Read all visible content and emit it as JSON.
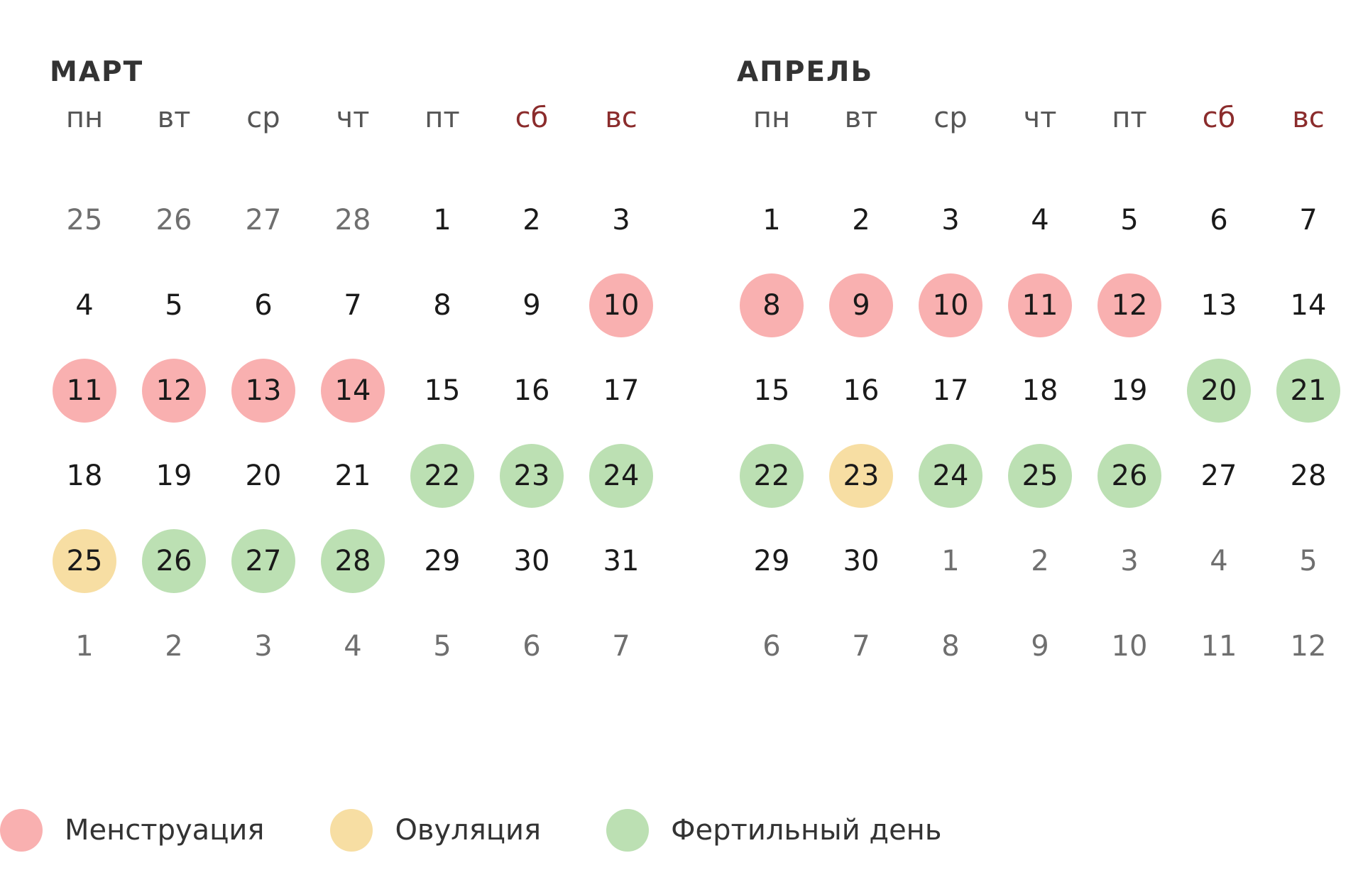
{
  "months": [
    {
      "title": "МАРТ",
      "weekdays": [
        "пн",
        "вт",
        "ср",
        "чт",
        "пт",
        "сб",
        "вс"
      ],
      "days": [
        {
          "label": "25",
          "current": false,
          "mark": ""
        },
        {
          "label": "26",
          "current": false,
          "mark": ""
        },
        {
          "label": "27",
          "current": false,
          "mark": ""
        },
        {
          "label": "28",
          "current": false,
          "mark": ""
        },
        {
          "label": "1",
          "current": true,
          "mark": ""
        },
        {
          "label": "2",
          "current": true,
          "mark": ""
        },
        {
          "label": "3",
          "current": true,
          "mark": ""
        },
        {
          "label": "4",
          "current": true,
          "mark": ""
        },
        {
          "label": "5",
          "current": true,
          "mark": ""
        },
        {
          "label": "6",
          "current": true,
          "mark": ""
        },
        {
          "label": "7",
          "current": true,
          "mark": ""
        },
        {
          "label": "8",
          "current": true,
          "mark": ""
        },
        {
          "label": "9",
          "current": true,
          "mark": ""
        },
        {
          "label": "10",
          "current": true,
          "mark": "menstruation"
        },
        {
          "label": "11",
          "current": true,
          "mark": "menstruation"
        },
        {
          "label": "12",
          "current": true,
          "mark": "menstruation"
        },
        {
          "label": "13",
          "current": true,
          "mark": "menstruation"
        },
        {
          "label": "14",
          "current": true,
          "mark": "menstruation"
        },
        {
          "label": "15",
          "current": true,
          "mark": ""
        },
        {
          "label": "16",
          "current": true,
          "mark": ""
        },
        {
          "label": "17",
          "current": true,
          "mark": ""
        },
        {
          "label": "18",
          "current": true,
          "mark": ""
        },
        {
          "label": "19",
          "current": true,
          "mark": ""
        },
        {
          "label": "20",
          "current": true,
          "mark": ""
        },
        {
          "label": "21",
          "current": true,
          "mark": ""
        },
        {
          "label": "22",
          "current": true,
          "mark": "fertile"
        },
        {
          "label": "23",
          "current": true,
          "mark": "fertile"
        },
        {
          "label": "24",
          "current": true,
          "mark": "fertile"
        },
        {
          "label": "25",
          "current": true,
          "mark": "ovulation"
        },
        {
          "label": "26",
          "current": true,
          "mark": "fertile"
        },
        {
          "label": "27",
          "current": true,
          "mark": "fertile"
        },
        {
          "label": "28",
          "current": true,
          "mark": "fertile"
        },
        {
          "label": "29",
          "current": true,
          "mark": ""
        },
        {
          "label": "30",
          "current": true,
          "mark": ""
        },
        {
          "label": "31",
          "current": true,
          "mark": ""
        },
        {
          "label": "1",
          "current": false,
          "mark": ""
        },
        {
          "label": "2",
          "current": false,
          "mark": ""
        },
        {
          "label": "3",
          "current": false,
          "mark": ""
        },
        {
          "label": "4",
          "current": false,
          "mark": ""
        },
        {
          "label": "5",
          "current": false,
          "mark": ""
        },
        {
          "label": "6",
          "current": false,
          "mark": ""
        },
        {
          "label": "7",
          "current": false,
          "mark": ""
        }
      ]
    },
    {
      "title": "АПРЕЛЬ",
      "weekdays": [
        "пн",
        "вт",
        "ср",
        "чт",
        "пт",
        "сб",
        "вс"
      ],
      "days": [
        {
          "label": "1",
          "current": true,
          "mark": ""
        },
        {
          "label": "2",
          "current": true,
          "mark": ""
        },
        {
          "label": "3",
          "current": true,
          "mark": ""
        },
        {
          "label": "4",
          "current": true,
          "mark": ""
        },
        {
          "label": "5",
          "current": true,
          "mark": ""
        },
        {
          "label": "6",
          "current": true,
          "mark": ""
        },
        {
          "label": "7",
          "current": true,
          "mark": ""
        },
        {
          "label": "8",
          "current": true,
          "mark": "menstruation"
        },
        {
          "label": "9",
          "current": true,
          "mark": "menstruation"
        },
        {
          "label": "10",
          "current": true,
          "mark": "menstruation"
        },
        {
          "label": "11",
          "current": true,
          "mark": "menstruation"
        },
        {
          "label": "12",
          "current": true,
          "mark": "menstruation"
        },
        {
          "label": "13",
          "current": true,
          "mark": ""
        },
        {
          "label": "14",
          "current": true,
          "mark": ""
        },
        {
          "label": "15",
          "current": true,
          "mark": ""
        },
        {
          "label": "16",
          "current": true,
          "mark": ""
        },
        {
          "label": "17",
          "current": true,
          "mark": ""
        },
        {
          "label": "18",
          "current": true,
          "mark": ""
        },
        {
          "label": "19",
          "current": true,
          "mark": ""
        },
        {
          "label": "20",
          "current": true,
          "mark": "fertile"
        },
        {
          "label": "21",
          "current": true,
          "mark": "fertile"
        },
        {
          "label": "22",
          "current": true,
          "mark": "fertile"
        },
        {
          "label": "23",
          "current": true,
          "mark": "ovulation"
        },
        {
          "label": "24",
          "current": true,
          "mark": "fertile"
        },
        {
          "label": "25",
          "current": true,
          "mark": "fertile"
        },
        {
          "label": "26",
          "current": true,
          "mark": "fertile"
        },
        {
          "label": "27",
          "current": true,
          "mark": ""
        },
        {
          "label": "28",
          "current": true,
          "mark": ""
        },
        {
          "label": "29",
          "current": true,
          "mark": ""
        },
        {
          "label": "30",
          "current": true,
          "mark": ""
        },
        {
          "label": "1",
          "current": false,
          "mark": ""
        },
        {
          "label": "2",
          "current": false,
          "mark": ""
        },
        {
          "label": "3",
          "current": false,
          "mark": ""
        },
        {
          "label": "4",
          "current": false,
          "mark": ""
        },
        {
          "label": "5",
          "current": false,
          "mark": ""
        },
        {
          "label": "6",
          "current": false,
          "mark": ""
        },
        {
          "label": "7",
          "current": false,
          "mark": ""
        },
        {
          "label": "8",
          "current": false,
          "mark": ""
        },
        {
          "label": "9",
          "current": false,
          "mark": ""
        },
        {
          "label": "10",
          "current": false,
          "mark": ""
        },
        {
          "label": "11",
          "current": false,
          "mark": ""
        },
        {
          "label": "12",
          "current": false,
          "mark": ""
        }
      ]
    }
  ],
  "legend": [
    {
      "label": "Менструация",
      "color": "#f9b0b0"
    },
    {
      "label": "Овуляция",
      "color": "#f7dea3"
    },
    {
      "label": "Фертильный день",
      "color": "#bce0b3"
    }
  ],
  "colors": {
    "menstruation": "#f9b0b0",
    "ovulation": "#f7dea3",
    "fertile": "#bce0b3",
    "weekend_label": "#8b2c2c"
  }
}
